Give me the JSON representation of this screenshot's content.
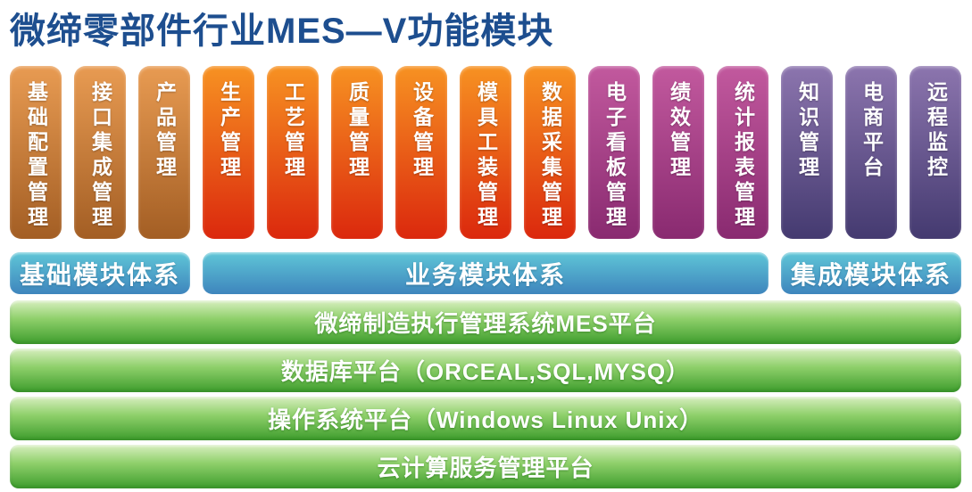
{
  "title": "微缔零部件行业MES—V功能模块",
  "title_color": "#1d4e8f",
  "module_groups": [
    {
      "group": "basic",
      "colors": {
        "top": "#e89b52",
        "bottom": "#a35e24"
      },
      "modules": [
        "基础配置管理",
        "接口集成管理",
        "产品管理"
      ]
    },
    {
      "group": "business-production",
      "colors": {
        "top": "#f79222",
        "bottom": "#db280d"
      },
      "modules": [
        "生产管理",
        "工艺管理",
        "质量管理",
        "设备管理",
        "模具工装管理",
        "数据采集管理"
      ]
    },
    {
      "group": "business-analytics",
      "colors": {
        "top": "#c2599e",
        "bottom": "#892a70"
      },
      "modules": [
        "电子看板管理",
        "绩效管理",
        "统计报表管理"
      ]
    },
    {
      "group": "integration",
      "colors": {
        "top": "#8c75ae",
        "bottom": "#443a70"
      },
      "modules": [
        "知识管理",
        "电商平台",
        "远程监控"
      ]
    }
  ],
  "tier_bars": [
    {
      "label": "基础模块体系"
    },
    {
      "label": "业务模块体系"
    },
    {
      "label": "集成模块体系"
    }
  ],
  "tier_bar_colors": {
    "top": "#5fc6d7",
    "bottom": "#3e85bd"
  },
  "platform_layers": [
    {
      "label": "微缔制造执行管理系统MES平台"
    },
    {
      "label": "数据库平台（ORCEAL,SQL,MYSQ）"
    },
    {
      "label": "操作系统平台（Windows Linux Unix）"
    },
    {
      "label": "云计算服务管理平台"
    }
  ],
  "platform_colors": {
    "top": "#d8efc0",
    "mid": "#8fd06b",
    "bottom": "#46a233"
  }
}
